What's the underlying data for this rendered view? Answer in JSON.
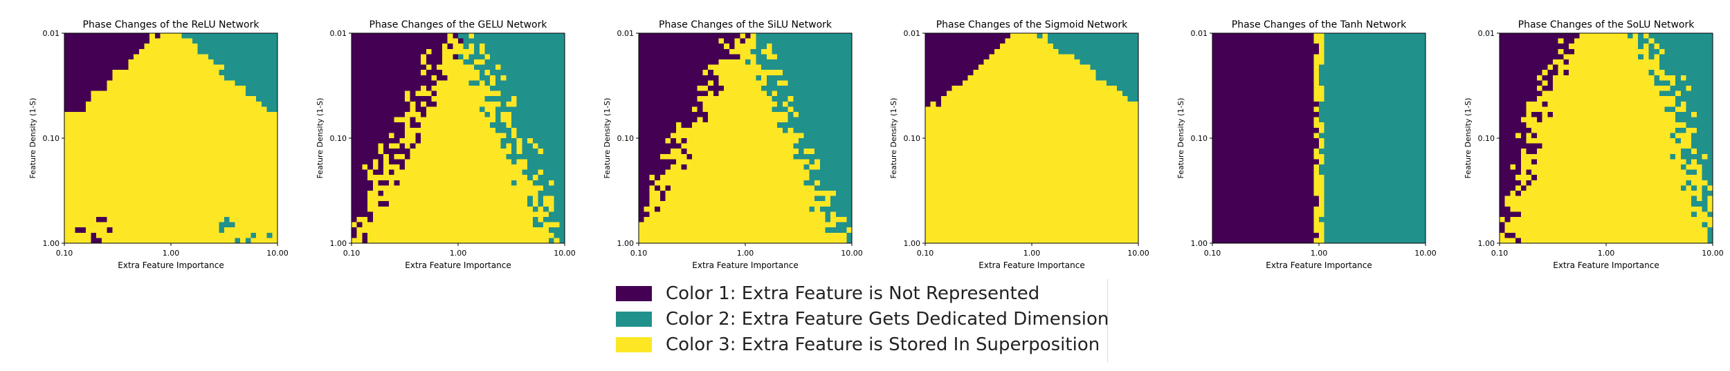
{
  "colors": {
    "not_represented": "#440154",
    "dedicated": "#21918c",
    "superposition": "#fde725"
  },
  "chart_data": [
    {
      "type": "heatmap",
      "title": "Phase Changes of the ReLU Network",
      "xlabel": "Extra Feature Importance",
      "ylabel": "Feature Density (1-S)",
      "xscale": "log",
      "yscale": "log",
      "xlim": [
        0.1,
        10
      ],
      "ylim": [
        1.0,
        0.01
      ],
      "x_ticks": [
        "0.10",
        "1.00",
        "10.00"
      ],
      "y_ticks": [
        "0.01",
        "0.10",
        "1.00"
      ],
      "grid_size": [
        40,
        40
      ],
      "legend": "below",
      "boundary_left": "top-left",
      "boundary_right": "top-right"
    },
    {
      "type": "heatmap",
      "title": "Phase Changes of the GELU Network",
      "xlabel": "Extra Feature Importance",
      "ylabel": "Feature Density (1-S)",
      "xscale": "log",
      "yscale": "log",
      "xlim": [
        0.1,
        10
      ],
      "ylim": [
        1.0,
        0.01
      ],
      "x_ticks": [
        "0.10",
        "1.00",
        "10.00"
      ],
      "y_ticks": [
        "0.01",
        "0.10",
        "1.00"
      ],
      "grid_size": [
        40,
        40
      ],
      "legend": "below"
    },
    {
      "type": "heatmap",
      "title": "Phase Changes of the SiLU Network",
      "xlabel": "Extra Feature Importance",
      "ylabel": "Feature Density (1-S)",
      "xscale": "log",
      "yscale": "log",
      "xlim": [
        0.1,
        10
      ],
      "ylim": [
        1.0,
        0.01
      ],
      "x_ticks": [
        "0.10",
        "1.00",
        "10.00"
      ],
      "y_ticks": [
        "0.01",
        "0.10",
        "1.00"
      ],
      "grid_size": [
        40,
        40
      ],
      "legend": "below"
    },
    {
      "type": "heatmap",
      "title": "Phase Changes of the Sigmoid Network",
      "xlabel": "Extra Feature Importance",
      "ylabel": "Feature Density (1-S)",
      "xscale": "log",
      "yscale": "log",
      "xlim": [
        0.1,
        10
      ],
      "ylim": [
        1.0,
        0.01
      ],
      "x_ticks": [
        "0.10",
        "1.00",
        "10.00"
      ],
      "y_ticks": [
        "0.01",
        "0.10",
        "1.00"
      ],
      "grid_size": [
        40,
        40
      ],
      "legend": "below"
    },
    {
      "type": "heatmap",
      "title": "Phase Changes of the Tanh Network",
      "xlabel": "Extra Feature Importance",
      "ylabel": "Feature Density (1-S)",
      "xscale": "log",
      "yscale": "log",
      "xlim": [
        0.1,
        10
      ],
      "ylim": [
        1.0,
        0.01
      ],
      "x_ticks": [
        "0.10",
        "1.00",
        "10.00"
      ],
      "y_ticks": [
        "0.01",
        "0.10",
        "1.00"
      ],
      "grid_size": [
        40,
        40
      ],
      "legend": "below"
    },
    {
      "type": "heatmap",
      "title": "Phase Changes of the SoLU Network",
      "xlabel": "Extra Feature Importance",
      "ylabel": "Feature Density (1-S)",
      "xscale": "log",
      "yscale": "log",
      "xlim": [
        0.1,
        10
      ],
      "ylim": [
        1.0,
        0.01
      ],
      "x_ticks": [
        "0.10",
        "1.00",
        "10.00"
      ],
      "y_ticks": [
        "0.01",
        "0.10",
        "1.00"
      ],
      "grid_size": [
        40,
        40
      ],
      "legend": "below"
    }
  ],
  "legend": {
    "items": [
      {
        "label": "Color 1: Extra Feature is Not Represented",
        "color": "#440154"
      },
      {
        "label": "Color 2: Extra Feature Gets Dedicated Dimension",
        "color": "#21918c"
      },
      {
        "label": "Color 3: Extra Feature is Stored In Superposition",
        "color": "#fde725"
      }
    ]
  }
}
